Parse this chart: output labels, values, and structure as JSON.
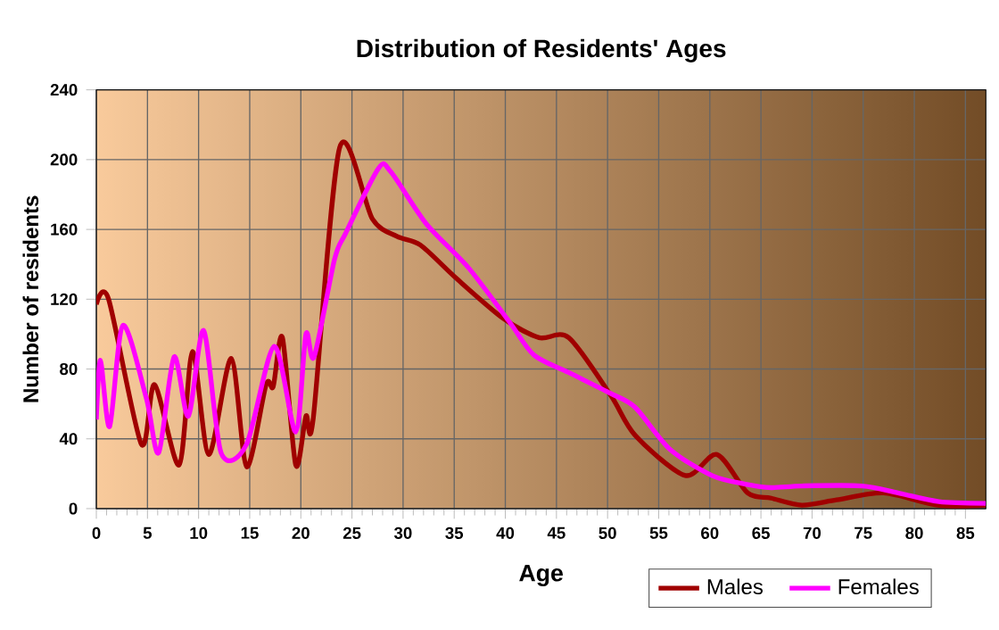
{
  "chart_data": {
    "type": "line",
    "title": "Distribution of Residents' Ages",
    "xlabel": "Age",
    "ylabel": "Number of residents",
    "xlim": [
      0,
      87
    ],
    "ylim": [
      0,
      240
    ],
    "xticks": [
      0,
      5,
      10,
      15,
      20,
      25,
      30,
      35,
      40,
      45,
      50,
      55,
      60,
      65,
      70,
      75,
      80,
      85
    ],
    "yticks": [
      0,
      40,
      80,
      120,
      160,
      200,
      240
    ],
    "grid": true,
    "legend": "bottom right",
    "series": [
      {
        "name": "Males",
        "color": "#a00000",
        "x": [
          0,
          1.2,
          4.4,
          5.7,
          8.1,
          9.4,
          11,
          13.2,
          14.7,
          16.6,
          17.3,
          18.2,
          19.5,
          20.5,
          21.2,
          23.8,
          27,
          29.4,
          31.7,
          35.2,
          39.8,
          43.3,
          46.2,
          50.3,
          52.7,
          57.6,
          60.7,
          63.7,
          66,
          69,
          72.4,
          77,
          82.3,
          87
        ],
        "values": [
          117,
          120,
          37,
          71,
          25,
          90,
          31,
          86,
          24,
          71,
          70,
          98,
          25,
          53,
          51,
          207,
          166,
          156,
          151,
          132,
          109,
          98,
          98,
          65,
          42,
          19,
          31,
          9,
          6,
          2,
          5,
          9,
          2,
          2
        ]
      },
      {
        "name": "Females",
        "color": "#ff00ff",
        "x": [
          0,
          0.4,
          1.3,
          2.6,
          4.9,
          6.1,
          7.6,
          9,
          10.5,
          12.2,
          14.7,
          17.4,
          19.5,
          20.5,
          21.3,
          23.3,
          24.4,
          27.6,
          28.8,
          32.3,
          36.4,
          40.4,
          42.8,
          46.2,
          50.3,
          52.7,
          56.1,
          60.2,
          63.5,
          66,
          69,
          74.9,
          78.4,
          82.4,
          87
        ],
        "values": [
          51,
          85,
          47,
          105,
          63,
          32,
          87,
          53,
          102,
          32,
          37,
          93,
          44,
          100,
          87,
          143,
          158,
          195,
          193,
          163,
          138,
          107,
          88,
          78,
          66,
          58,
          34,
          19,
          14,
          12,
          13,
          13,
          9,
          4,
          3
        ]
      }
    ]
  }
}
